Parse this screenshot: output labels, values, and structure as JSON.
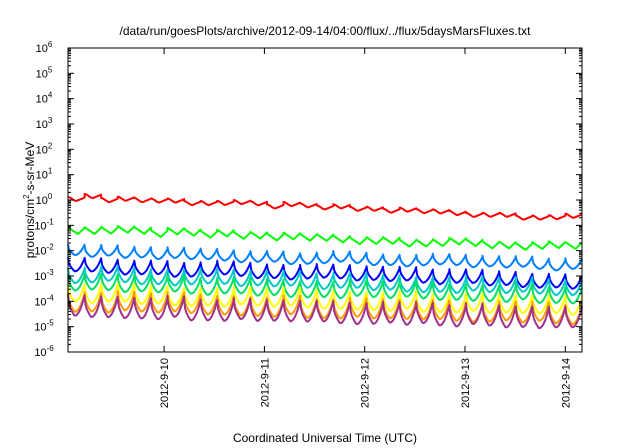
{
  "chart_data": {
    "type": "line",
    "title": "/data/run/goesPlots/archive/2012-09-14/04:00/flux/../flux/5daysMarsFluxes.txt",
    "xlabel": "Coordinated Universal Time (UTC)",
    "ylabel": {
      "prefix": "protons/cm",
      "superscript": "2",
      "suffix": "-s-sr-MeV"
    },
    "y_scale": "log",
    "ylim": [
      1e-06,
      1000000.0
    ],
    "y_ticks": [
      {
        "value": 1e-06,
        "base": "10",
        "exp": "-6"
      },
      {
        "value": 1e-05,
        "base": "10",
        "exp": "-5"
      },
      {
        "value": 0.0001,
        "base": "10",
        "exp": "-4"
      },
      {
        "value": 0.001,
        "base": "10",
        "exp": "-3"
      },
      {
        "value": 0.01,
        "base": "10",
        "exp": "-2"
      },
      {
        "value": 0.1,
        "base": "10",
        "exp": "-1"
      },
      {
        "value": 1.0,
        "base": "10",
        "exp": "0"
      },
      {
        "value": 10.0,
        "base": "10",
        "exp": "1"
      },
      {
        "value": 100.0,
        "base": "10",
        "exp": "2"
      },
      {
        "value": 1000.0,
        "base": "10",
        "exp": "3"
      },
      {
        "value": 10000.0,
        "base": "10",
        "exp": "4"
      },
      {
        "value": 100000.0,
        "base": "10",
        "exp": "5"
      },
      {
        "value": 1000000.0,
        "base": "10",
        "exp": "6"
      }
    ],
    "xlim": [
      "2012-09-09 01:00",
      "2012-09-14 04:00"
    ],
    "x_ticks": [
      "2012-9-10",
      "2012-9-11",
      "2012-9-12",
      "2012-9-13",
      "2012-9-14"
    ],
    "grid": false,
    "legend": "none",
    "sawtooth_cycles": 31,
    "series": [
      {
        "color": "#ff0000",
        "start": 1.6,
        "end": 0.23,
        "ratio": 1.4,
        "drop_pos": 0.5,
        "shape": "smooth"
      },
      {
        "color": "#00ff00",
        "start": 0.095,
        "end": 0.018,
        "ratio": 1.8,
        "drop_pos": 0.6,
        "shape": "linear"
      },
      {
        "color": "#0080ff",
        "start": 0.016,
        "end": 0.0045,
        "ratio": 2.6,
        "drop_pos": 0.4,
        "shape": "curve"
      },
      {
        "color": "#0000ff",
        "start": 0.0052,
        "end": 0.0012,
        "ratio": 3.4,
        "drop_pos": 0.4,
        "shape": "curve"
      },
      {
        "color": "#00c8c8",
        "start": 0.0023,
        "end": 0.0007,
        "ratio": 3.8,
        "drop_pos": 0.4,
        "shape": "curve"
      },
      {
        "color": "#00e060",
        "start": 0.0011,
        "end": 0.0004,
        "ratio": 4.2,
        "drop_pos": 0.4,
        "shape": "curve"
      },
      {
        "color": "#ffff00",
        "start": 0.0005,
        "end": 0.00016,
        "ratio": 5.0,
        "drop_pos": 0.4,
        "shape": "curve"
      },
      {
        "color": "#ff9900",
        "start": 0.00025,
        "end": 8e-05,
        "ratio": 5.5,
        "drop_pos": 0.4,
        "shape": "curve"
      },
      {
        "color": "#a0308f",
        "start": 0.00018,
        "end": 6e-05,
        "ratio": 6.5,
        "drop_pos": 0.4,
        "shape": "curve"
      }
    ]
  }
}
